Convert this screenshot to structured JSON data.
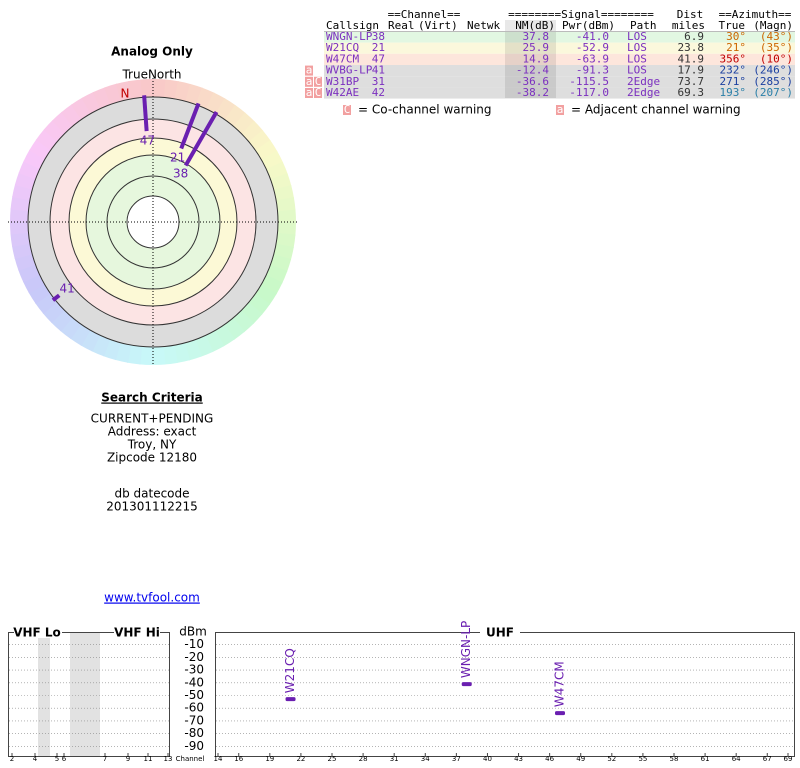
{
  "polar": {
    "title": "Analog Only",
    "north_label": "TrueNorth",
    "n_marker": "N",
    "color": "#6a1fb0",
    "stations": [
      {
        "label": "38",
        "azimuth": 30,
        "nm": 37.8
      },
      {
        "label": "21",
        "azimuth": 21,
        "nm": 25.9
      },
      {
        "label": "47",
        "azimuth": 356,
        "nm": 14.9
      },
      {
        "label": "41",
        "azimuth": 232,
        "nm": -12.4
      }
    ]
  },
  "table": {
    "group_header": {
      "channel": "==Channel==",
      "signal": "========Signal========",
      "dist": "Dist",
      "azimuth": "==Azimuth=="
    },
    "header": {
      "callsign": "Callsign",
      "real": "Real",
      "virt": "(Virt)",
      "netwk": "Netwk",
      "nm": "NM(dB)",
      "pwr": "Pwr(dBm)",
      "path": "Path",
      "dist": "miles",
      "true": "True",
      "magn": "(Magn)"
    },
    "rows": [
      {
        "callsign": "WNGN-LP",
        "real": "38",
        "nm": "37.8",
        "pwr": "-41.0",
        "path": "LOS",
        "dist": "6.9",
        "true": "30°",
        "magn": "(43°)",
        "warnings": [],
        "row_color": "#e2f7e2",
        "azimuth_color": "#cc6600"
      },
      {
        "callsign": "W21CQ",
        "real": "21",
        "nm": "25.9",
        "pwr": "-52.9",
        "path": "LOS",
        "dist": "23.8",
        "true": "21°",
        "magn": "(35°)",
        "warnings": [],
        "row_color": "#fbf8dc",
        "azimuth_color": "#cc6600"
      },
      {
        "callsign": "W47CM",
        "real": "47",
        "nm": "14.9",
        "pwr": "-63.9",
        "path": "LOS",
        "dist": "41.9",
        "true": "356°",
        "magn": "(10°)",
        "warnings": [],
        "row_color": "#fde6dc",
        "azimuth_color": "#c00000"
      },
      {
        "callsign": "WVBG-LP",
        "real": "41",
        "nm": "-12.4",
        "pwr": "-91.3",
        "path": "LOS",
        "dist": "17.9",
        "true": "232°",
        "magn": "(246°)",
        "warnings": [
          "a"
        ],
        "row_color": "#dedede",
        "azimuth_color": "#1a3fa0"
      },
      {
        "callsign": "W31BP",
        "real": "31",
        "nm": "-36.6",
        "pwr": "-115.5",
        "path": "2Edge",
        "dist": "73.7",
        "true": "271°",
        "magn": "(285°)",
        "warnings": [
          "a",
          "C"
        ],
        "row_color": "#dedede",
        "azimuth_color": "#1a3fa0"
      },
      {
        "callsign": "W42AE",
        "real": "42",
        "nm": "-38.2",
        "pwr": "-117.0",
        "path": "2Edge",
        "dist": "69.3",
        "true": "193°",
        "magn": "(207°)",
        "warnings": [
          "a",
          "C"
        ],
        "row_color": "#dedede",
        "azimuth_color": "#2a7fa8"
      }
    ],
    "legend": [
      {
        "icon": "C",
        "text": "= Co-channel warning"
      },
      {
        "icon": "a",
        "text": "= Adjacent channel warning"
      }
    ]
  },
  "search": {
    "title": "Search Criteria",
    "lines": [
      "CURRENT+PENDING",
      "Address: exact",
      "Troy, NY",
      "Zipcode 12180"
    ],
    "datecode_label": "db datecode",
    "datecode": "201301112215"
  },
  "link": "www.tvfool.com",
  "spectrum": {
    "vhf_lo_label": "VHF Lo",
    "vhf_hi_label": "VHF Hi",
    "uhf_label": "UHF",
    "y_label": "dBm",
    "x_label": "Channel",
    "ylim": [
      0,
      -100
    ],
    "yticks": [
      -10,
      -20,
      -30,
      -40,
      -50,
      -60,
      -70,
      -80,
      -90
    ],
    "vhf_ticks": [
      2,
      4,
      5,
      6,
      7,
      9,
      11,
      13
    ],
    "uhf_xlim": [
      14,
      69
    ],
    "uhf_ticks": [
      14,
      16,
      19,
      22,
      25,
      28,
      31,
      34,
      37,
      40,
      43,
      46,
      49,
      52,
      55,
      58,
      61,
      64,
      67,
      69
    ],
    "color": "#6a1fb0",
    "signals": [
      {
        "name": "W21CQ",
        "channel": 21,
        "dbm": -52.9
      },
      {
        "name": "WNGN-LP",
        "channel": 38,
        "dbm": -41.0
      },
      {
        "name": "W47CM",
        "channel": 47,
        "dbm": -63.9
      }
    ]
  }
}
